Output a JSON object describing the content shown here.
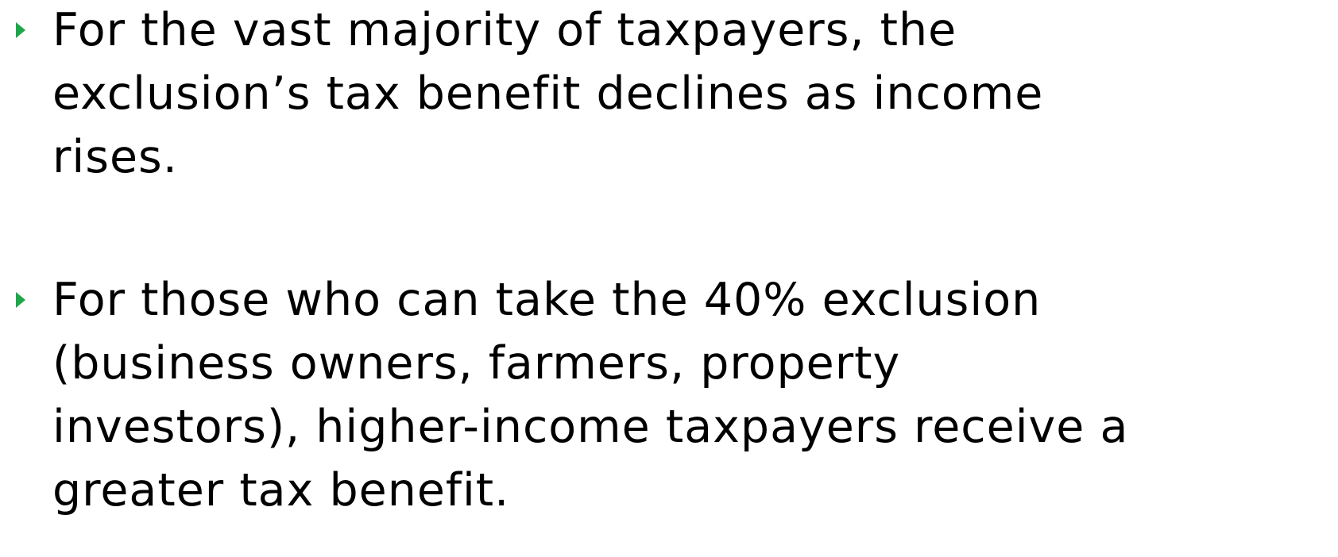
{
  "bullets": [
    {
      "lines": [
        "For the vast majority of taxpayers, the",
        "exclusion’s tax benefit declines as income",
        "rises."
      ]
    },
    {
      "lines": [
        "For those who can take the 40% exclusion",
        "(business owners, farmers, property",
        "investors), higher-income taxpayers receive a",
        "greater tax benefit."
      ]
    }
  ]
}
